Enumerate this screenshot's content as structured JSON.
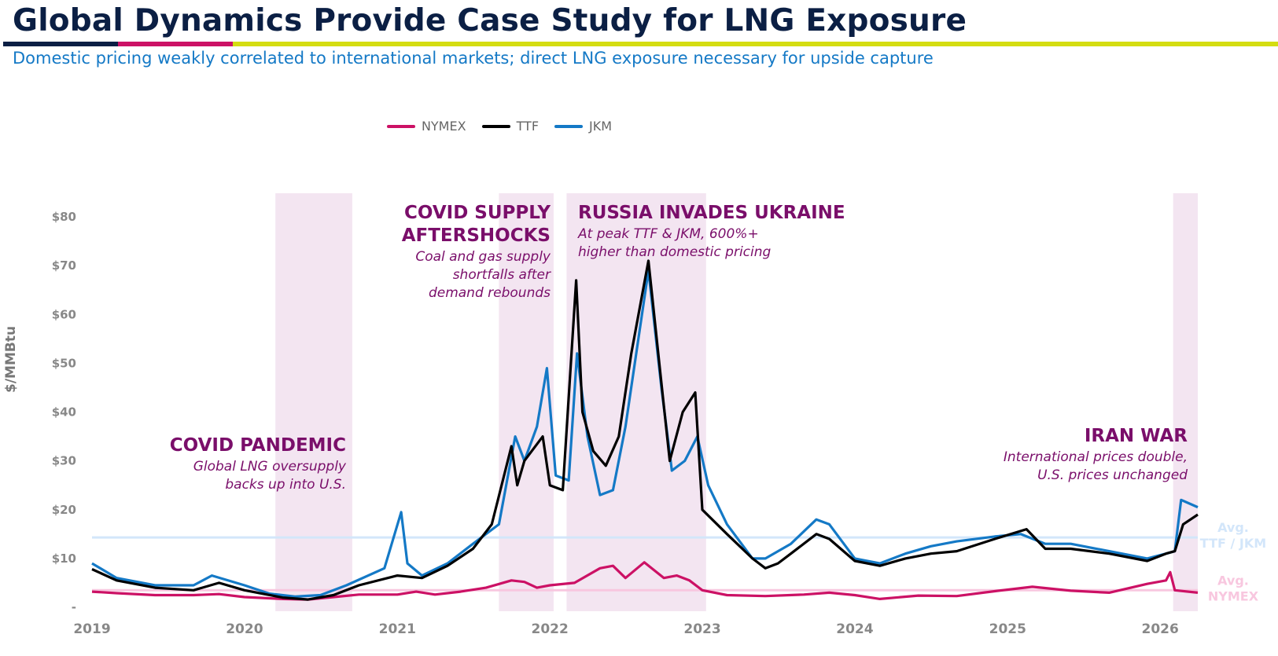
{
  "title": "Global Dynamics Provide Case Study for LNG Exposure",
  "subtitle": "Domestic pricing weakly correlated to international markets; direct LNG exposure necessary for upside capture",
  "colors": {
    "navy": "#0b1f44",
    "magenta": "#cc1165",
    "lime": "#d4dd11",
    "blue": "#1479c6",
    "nymex": "#cc1165",
    "ttf": "#000000",
    "jkm": "#1479c6",
    "shade": "#f3e5f1",
    "annotation": "#7a0e6a",
    "avg_ttf_jkm": "#d3e6fa",
    "avg_nymex": "#f8c7df"
  },
  "chart_data": {
    "type": "line",
    "ylabel": "$/MMBtu",
    "ylim": [
      0,
      80
    ],
    "yticks": [
      {
        "value": 0,
        "label": "-"
      },
      {
        "value": 10,
        "label": "$10"
      },
      {
        "value": 20,
        "label": "$20"
      },
      {
        "value": 30,
        "label": "$30"
      },
      {
        "value": 40,
        "label": "$40"
      },
      {
        "value": 50,
        "label": "$50"
      },
      {
        "value": 60,
        "label": "$60"
      },
      {
        "value": 70,
        "label": "$70"
      },
      {
        "value": 80,
        "label": "$80"
      }
    ],
    "xlim": [
      "2019-01-01",
      "2026-04-01"
    ],
    "xticks": [
      "2019",
      "2020",
      "2021",
      "2022",
      "2023",
      "2024",
      "2025",
      "2026"
    ],
    "legend": "top-center",
    "grid": false,
    "series": [
      {
        "name": "NYMEX",
        "color": "#cc1165",
        "points": [
          [
            "2019-01-01",
            3.2
          ],
          [
            "2019-03-01",
            2.9
          ],
          [
            "2019-06-01",
            2.5
          ],
          [
            "2019-09-01",
            2.5
          ],
          [
            "2019-11-01",
            2.7
          ],
          [
            "2020-01-01",
            2.1
          ],
          [
            "2020-04-01",
            1.7
          ],
          [
            "2020-06-01",
            1.6
          ],
          [
            "2020-08-01",
            2.1
          ],
          [
            "2020-10-01",
            2.6
          ],
          [
            "2021-01-01",
            2.6
          ],
          [
            "2021-02-15",
            3.2
          ],
          [
            "2021-04-01",
            2.6
          ],
          [
            "2021-06-01",
            3.2
          ],
          [
            "2021-08-01",
            4.0
          ],
          [
            "2021-10-01",
            5.5
          ],
          [
            "2021-11-01",
            5.2
          ],
          [
            "2021-12-01",
            4.0
          ],
          [
            "2022-01-01",
            4.5
          ],
          [
            "2022-03-01",
            5.0
          ],
          [
            "2022-05-01",
            8.0
          ],
          [
            "2022-06-01",
            8.5
          ],
          [
            "2022-07-01",
            6.0
          ],
          [
            "2022-08-15",
            9.2
          ],
          [
            "2022-10-01",
            6.0
          ],
          [
            "2022-11-01",
            6.5
          ],
          [
            "2022-12-01",
            5.5
          ],
          [
            "2023-01-01",
            3.5
          ],
          [
            "2023-03-01",
            2.5
          ],
          [
            "2023-06-01",
            2.3
          ],
          [
            "2023-09-01",
            2.6
          ],
          [
            "2023-11-01",
            3.0
          ],
          [
            "2024-01-01",
            2.5
          ],
          [
            "2024-03-01",
            1.7
          ],
          [
            "2024-06-01",
            2.4
          ],
          [
            "2024-09-01",
            2.3
          ],
          [
            "2024-12-01",
            3.3
          ],
          [
            "2025-03-01",
            4.2
          ],
          [
            "2025-06-01",
            3.4
          ],
          [
            "2025-09-01",
            3.0
          ],
          [
            "2025-12-01",
            4.8
          ],
          [
            "2026-01-15",
            5.5
          ],
          [
            "2026-01-25",
            7.2
          ],
          [
            "2026-02-05",
            3.5
          ],
          [
            "2026-04-01",
            3.0
          ]
        ]
      },
      {
        "name": "TTF",
        "color": "#000000",
        "points": [
          [
            "2019-01-01",
            7.8
          ],
          [
            "2019-03-01",
            5.5
          ],
          [
            "2019-06-01",
            4.0
          ],
          [
            "2019-09-01",
            3.5
          ],
          [
            "2019-11-01",
            5.0
          ],
          [
            "2020-01-01",
            3.5
          ],
          [
            "2020-04-01",
            2.0
          ],
          [
            "2020-06-01",
            1.6
          ],
          [
            "2020-08-01",
            2.5
          ],
          [
            "2020-10-01",
            4.5
          ],
          [
            "2021-01-01",
            6.5
          ],
          [
            "2021-03-01",
            6.0
          ],
          [
            "2021-05-01",
            8.5
          ],
          [
            "2021-07-01",
            12.0
          ],
          [
            "2021-08-15",
            17.0
          ],
          [
            "2021-10-01",
            33.0
          ],
          [
            "2021-10-15",
            25.0
          ],
          [
            "2021-11-01",
            30.0
          ],
          [
            "2021-12-15",
            35.0
          ],
          [
            "2022-01-01",
            25.0
          ],
          [
            "2022-02-01",
            24.0
          ],
          [
            "2022-03-05",
            67.0
          ],
          [
            "2022-03-20",
            40.0
          ],
          [
            "2022-04-15",
            32.0
          ],
          [
            "2022-05-15",
            29.0
          ],
          [
            "2022-06-15",
            35.0
          ],
          [
            "2022-07-15",
            52.0
          ],
          [
            "2022-08-25",
            71.0
          ],
          [
            "2022-09-20",
            50.0
          ],
          [
            "2022-10-15",
            30.0
          ],
          [
            "2022-11-15",
            40.0
          ],
          [
            "2022-12-15",
            44.0
          ],
          [
            "2023-01-01",
            20.0
          ],
          [
            "2023-03-01",
            15.0
          ],
          [
            "2023-05-01",
            10.0
          ],
          [
            "2023-06-01",
            8.0
          ],
          [
            "2023-07-01",
            9.0
          ],
          [
            "2023-08-01",
            11.0
          ],
          [
            "2023-10-01",
            15.0
          ],
          [
            "2023-11-01",
            14.0
          ],
          [
            "2024-01-01",
            9.5
          ],
          [
            "2024-03-01",
            8.5
          ],
          [
            "2024-05-01",
            10.0
          ],
          [
            "2024-07-01",
            11.0
          ],
          [
            "2024-09-01",
            11.5
          ],
          [
            "2024-12-01",
            14.0
          ],
          [
            "2025-02-15",
            16.0
          ],
          [
            "2025-04-01",
            12.0
          ],
          [
            "2025-06-01",
            12.0
          ],
          [
            "2025-09-01",
            11.0
          ],
          [
            "2025-12-01",
            9.5
          ],
          [
            "2026-01-15",
            11.0
          ],
          [
            "2026-02-05",
            11.5
          ],
          [
            "2026-02-25",
            17.0
          ],
          [
            "2026-04-01",
            19.0
          ]
        ]
      },
      {
        "name": "JKM",
        "color": "#1479c6",
        "points": [
          [
            "2019-01-01",
            9.0
          ],
          [
            "2019-03-01",
            6.0
          ],
          [
            "2019-06-01",
            4.5
          ],
          [
            "2019-09-01",
            4.5
          ],
          [
            "2019-10-15",
            6.5
          ],
          [
            "2020-01-01",
            4.5
          ],
          [
            "2020-03-01",
            2.8
          ],
          [
            "2020-05-01",
            2.2
          ],
          [
            "2020-07-01",
            2.5
          ],
          [
            "2020-09-01",
            4.5
          ],
          [
            "2020-12-01",
            8.0
          ],
          [
            "2021-01-10",
            19.5
          ],
          [
            "2021-01-25",
            9.0
          ],
          [
            "2021-03-01",
            6.5
          ],
          [
            "2021-05-01",
            9.0
          ],
          [
            "2021-07-01",
            13.0
          ],
          [
            "2021-09-01",
            17.0
          ],
          [
            "2021-10-10",
            35.0
          ],
          [
            "2021-11-01",
            30.0
          ],
          [
            "2021-12-01",
            37.0
          ],
          [
            "2021-12-25",
            49.0
          ],
          [
            "2022-01-15",
            27.0
          ],
          [
            "2022-02-15",
            26.0
          ],
          [
            "2022-03-07",
            52.0
          ],
          [
            "2022-04-01",
            35.0
          ],
          [
            "2022-05-01",
            23.0
          ],
          [
            "2022-06-01",
            24.0
          ],
          [
            "2022-07-01",
            37.0
          ],
          [
            "2022-08-25",
            69.0
          ],
          [
            "2022-09-25",
            45.0
          ],
          [
            "2022-10-20",
            28.0
          ],
          [
            "2022-11-20",
            30.0
          ],
          [
            "2022-12-20",
            35.0
          ],
          [
            "2023-01-15",
            25.0
          ],
          [
            "2023-03-01",
            17.0
          ],
          [
            "2023-05-01",
            10.0
          ],
          [
            "2023-06-01",
            10.0
          ],
          [
            "2023-08-01",
            13.0
          ],
          [
            "2023-10-01",
            18.0
          ],
          [
            "2023-11-01",
            17.0
          ],
          [
            "2024-01-01",
            10.0
          ],
          [
            "2024-03-01",
            9.0
          ],
          [
            "2024-05-01",
            11.0
          ],
          [
            "2024-07-01",
            12.5
          ],
          [
            "2024-09-01",
            13.5
          ],
          [
            "2024-12-01",
            14.5
          ],
          [
            "2025-02-01",
            15.0
          ],
          [
            "2025-04-01",
            13.0
          ],
          [
            "2025-06-01",
            13.0
          ],
          [
            "2025-09-01",
            11.5
          ],
          [
            "2025-12-01",
            10.0
          ],
          [
            "2026-01-15",
            11.0
          ],
          [
            "2026-02-05",
            11.5
          ],
          [
            "2026-02-20",
            22.0
          ],
          [
            "2026-04-01",
            20.5
          ]
        ]
      }
    ],
    "averages": [
      {
        "label_lines": [
          "Avg.",
          "TTF / JKM"
        ],
        "value": 14.3
      },
      {
        "label_lines": [
          "Avg.",
          "NYMEX"
        ],
        "value": 3.5
      }
    ],
    "shaded_periods": [
      {
        "start": "2020-03-15",
        "end": "2020-09-15"
      },
      {
        "start": "2021-09-01",
        "end": "2022-01-10"
      },
      {
        "start": "2022-02-10",
        "end": "2023-01-10"
      },
      {
        "start": "2026-02-01",
        "end": "2026-04-01"
      }
    ],
    "annotations": [
      {
        "title_lines": [
          "COVID PANDEMIC"
        ],
        "body_lines": [
          "Global LNG oversupply",
          "backs up into U.S."
        ]
      },
      {
        "title_lines": [
          "COVID SUPPLY",
          "AFTERSHOCKS"
        ],
        "body_lines": [
          "Coal and gas supply",
          "shortfalls after",
          "demand rebounds"
        ]
      },
      {
        "title_lines": [
          "RUSSIA INVADES UKRAINE"
        ],
        "body_lines": [
          "At peak TTF & JKM, 600%+",
          "higher than domestic pricing"
        ]
      },
      {
        "title_lines": [
          "IRAN WAR"
        ],
        "body_lines": [
          "International prices double,",
          "U.S. prices unchanged"
        ]
      }
    ]
  }
}
